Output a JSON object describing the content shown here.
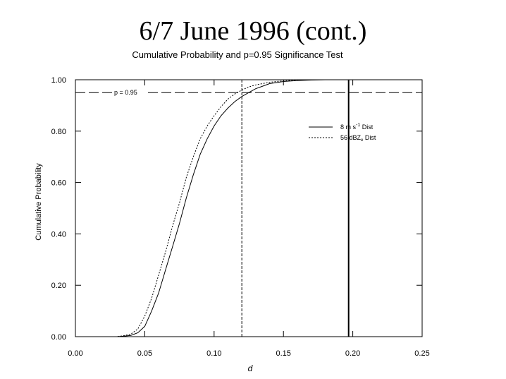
{
  "slide": {
    "title": "6/7 June 1996 (cont.)"
  },
  "chart_data": {
    "type": "line",
    "title": "Cumulative Probability and p=0.95 Significance Test",
    "xlabel": "d",
    "ylabel": "Cumulative Probability",
    "xlim": [
      0.0,
      0.25
    ],
    "ylim": [
      0.0,
      1.0
    ],
    "x_ticks": [
      "0.00",
      "0.05",
      "0.10",
      "0.15",
      "0.20",
      "0.25"
    ],
    "y_ticks": [
      "0.00",
      "0.20",
      "0.40",
      "0.60",
      "0.80",
      "1.00"
    ],
    "grid": false,
    "legend_position": "upper-right",
    "series": [
      {
        "name_main": "8 m s",
        "name_sup": "-1",
        "name_tail": " Dist",
        "style": "solid",
        "x": [
          0.0,
          0.03,
          0.035,
          0.04,
          0.045,
          0.05,
          0.055,
          0.06,
          0.065,
          0.07,
          0.075,
          0.08,
          0.085,
          0.09,
          0.095,
          0.1,
          0.105,
          0.11,
          0.115,
          0.12,
          0.125,
          0.13,
          0.135,
          0.14,
          0.15,
          0.16,
          0.17,
          0.18,
          0.19,
          0.2,
          0.24
        ],
        "y": [
          0.0,
          0.0,
          0.002,
          0.005,
          0.015,
          0.04,
          0.1,
          0.17,
          0.26,
          0.35,
          0.44,
          0.54,
          0.63,
          0.71,
          0.77,
          0.82,
          0.86,
          0.89,
          0.915,
          0.935,
          0.95,
          0.965,
          0.975,
          0.985,
          0.993,
          0.997,
          0.999,
          1.0,
          1.0,
          1.0,
          1.0
        ]
      },
      {
        "name_main": "56 dBZ",
        "name_sub": "e",
        "name_tail": " Dist",
        "style": "dashed",
        "x": [
          0.0,
          0.03,
          0.035,
          0.04,
          0.045,
          0.05,
          0.055,
          0.06,
          0.065,
          0.07,
          0.075,
          0.08,
          0.085,
          0.09,
          0.095,
          0.1,
          0.105,
          0.11,
          0.115,
          0.12,
          0.125,
          0.13,
          0.14,
          0.15,
          0.16,
          0.17,
          0.24
        ],
        "y": [
          0.0,
          0.0,
          0.004,
          0.01,
          0.03,
          0.08,
          0.15,
          0.24,
          0.33,
          0.43,
          0.52,
          0.62,
          0.7,
          0.77,
          0.82,
          0.86,
          0.895,
          0.925,
          0.945,
          0.96,
          0.972,
          0.98,
          0.99,
          0.996,
          0.999,
          1.0,
          1.0
        ]
      }
    ],
    "reference_lines": [
      {
        "axis": "y",
        "value": 0.95,
        "label": "p = 0.95",
        "style": "long-dash"
      },
      {
        "axis": "x",
        "value": 0.12,
        "style": "dashed"
      },
      {
        "axis": "x",
        "value": 0.197,
        "style": "solid-thick"
      }
    ]
  }
}
